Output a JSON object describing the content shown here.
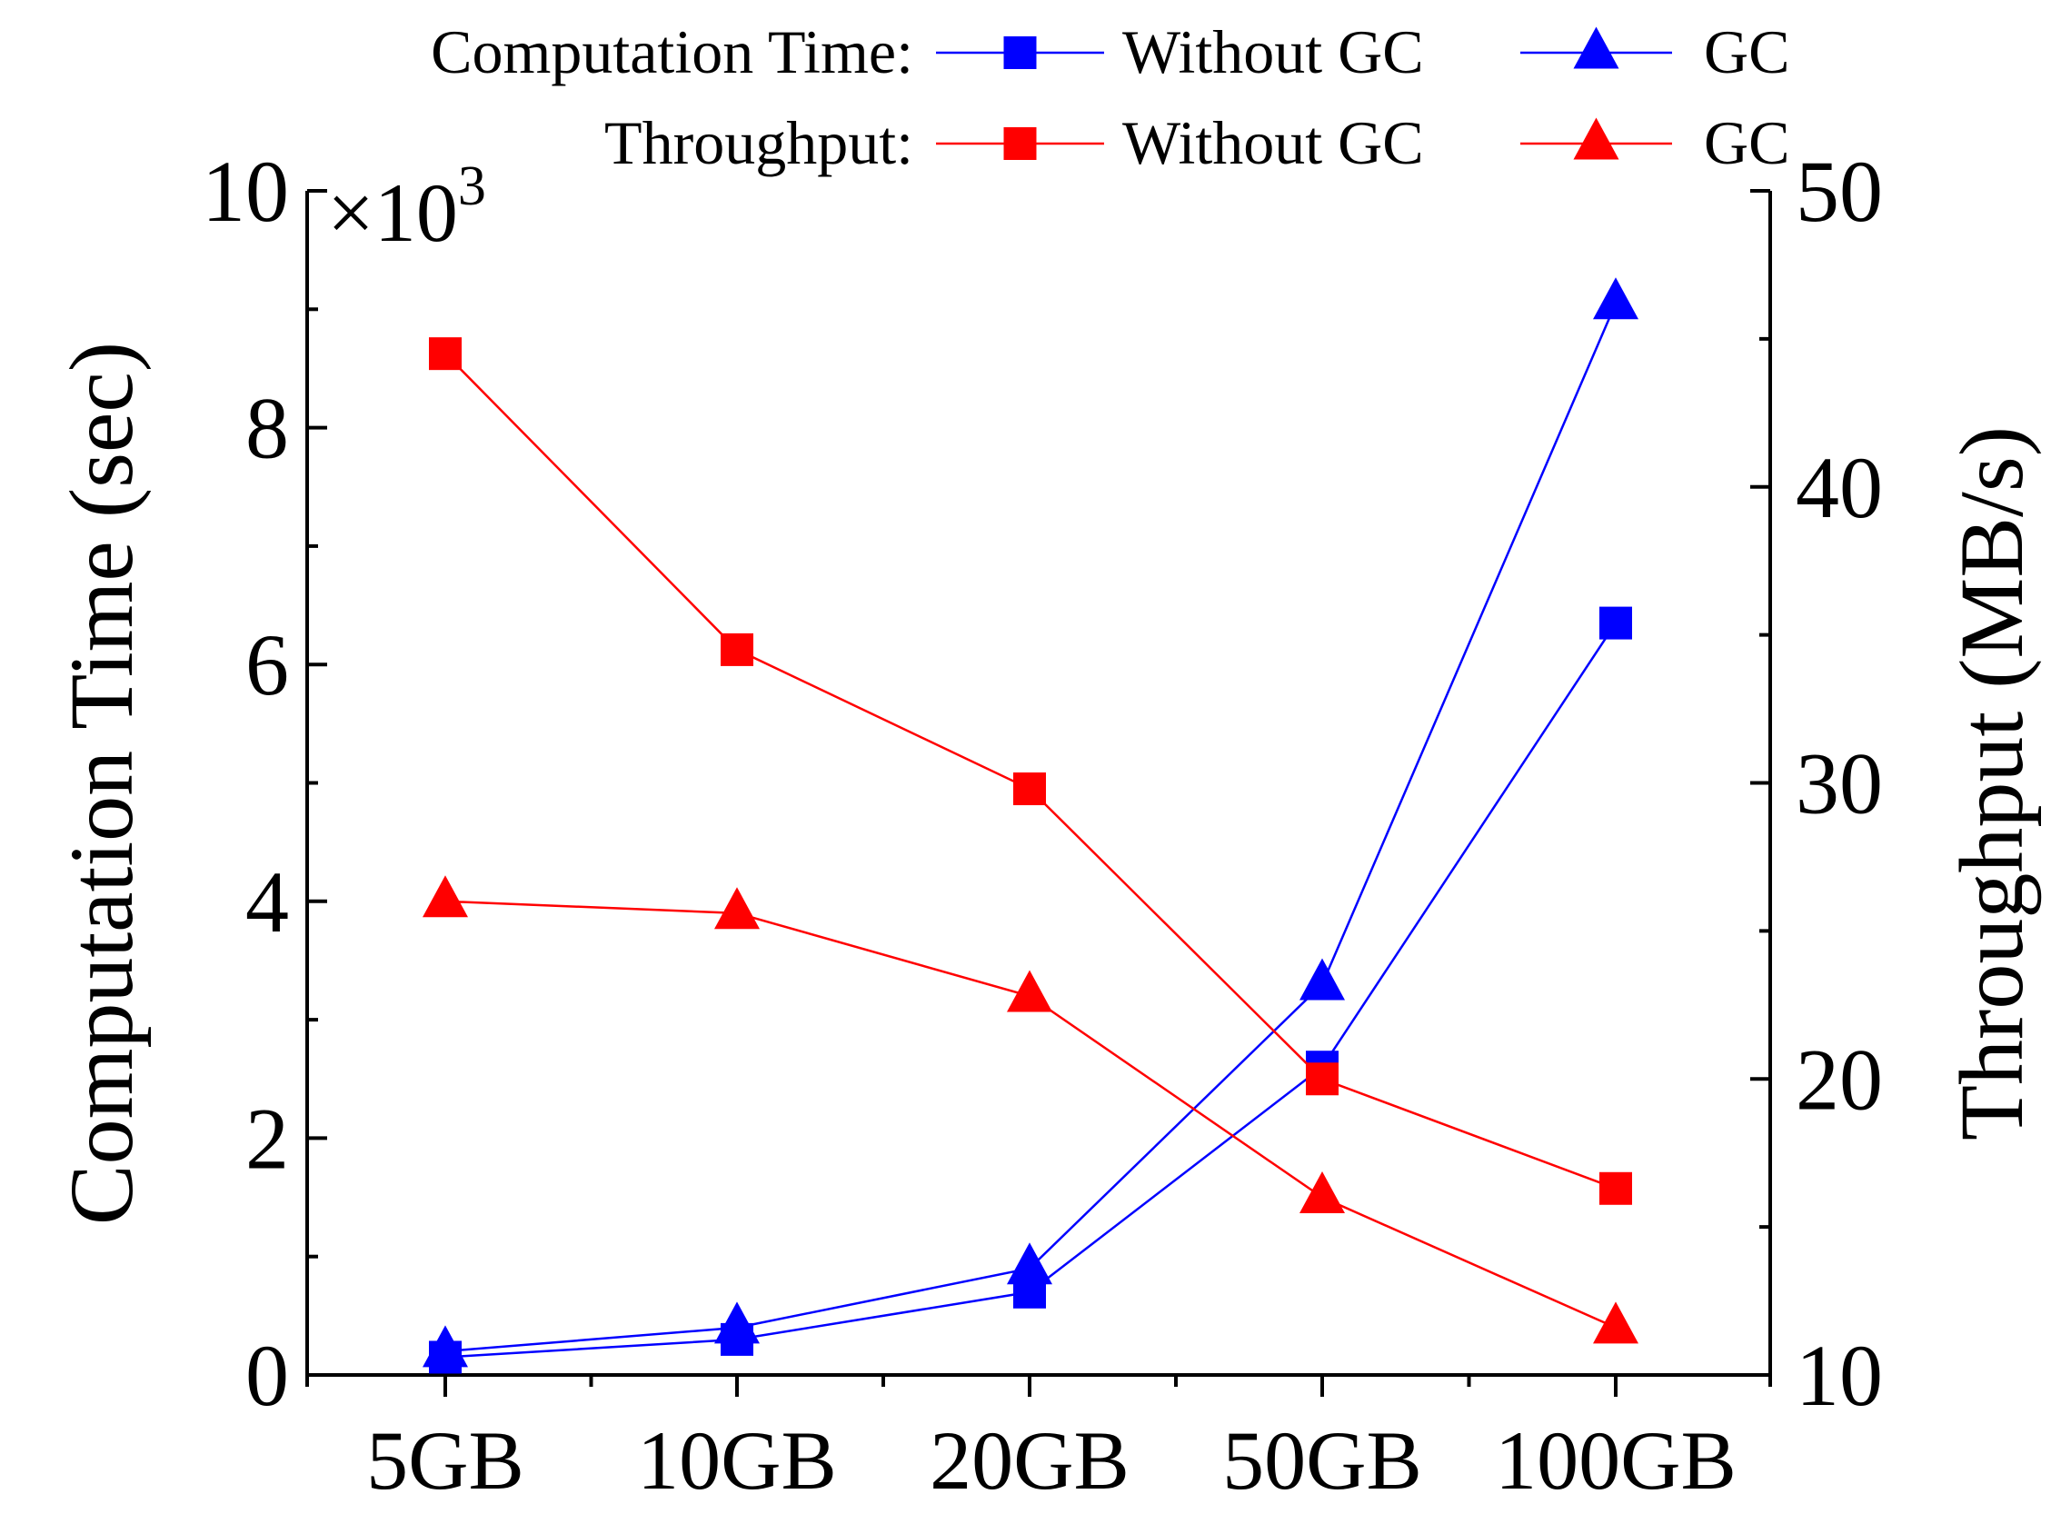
{
  "chart_data": {
    "type": "line",
    "categories": [
      "5GB",
      "10GB",
      "20GB",
      "50GB",
      "100GB"
    ],
    "left_axis": {
      "label": "Computation Time (sec)",
      "multiplier": "×10",
      "multiplier_exp": "3",
      "ylim": [
        0,
        10
      ],
      "ticks": [
        "0",
        "2",
        "4",
        "6",
        "8",
        "10"
      ],
      "tick_values": [
        0,
        2,
        4,
        6,
        8,
        10
      ]
    },
    "right_axis": {
      "label": "Throughput (MB/s)",
      "ylim": [
        10,
        50
      ],
      "ticks": [
        "10",
        "20",
        "30",
        "40",
        "50"
      ],
      "tick_values": [
        10,
        20,
        30,
        40,
        50
      ]
    },
    "legend": {
      "group1_label": "Computation Time:",
      "group2_label": "Throughput:",
      "placement": "top"
    },
    "series": [
      {
        "name": "Without GC",
        "group": "Computation Time",
        "axis": "left",
        "marker": "square",
        "color": "#0000FF",
        "values": [
          0.15,
          0.3,
          0.7,
          2.6,
          6.35
        ]
      },
      {
        "name": "GC",
        "group": "Computation Time",
        "axis": "left",
        "marker": "triangle",
        "color": "#0000FF",
        "values": [
          0.2,
          0.4,
          0.9,
          3.3,
          9.05
        ]
      },
      {
        "name": "Without GC",
        "group": "Throughput",
        "axis": "right",
        "marker": "square",
        "color": "#FF0000",
        "values": [
          44.5,
          34.5,
          29.8,
          20.0,
          16.3
        ]
      },
      {
        "name": "GC",
        "group": "Throughput",
        "axis": "right",
        "marker": "triangle",
        "color": "#FF0000",
        "values": [
          26.0,
          25.6,
          22.8,
          16.0,
          11.6
        ]
      }
    ]
  }
}
